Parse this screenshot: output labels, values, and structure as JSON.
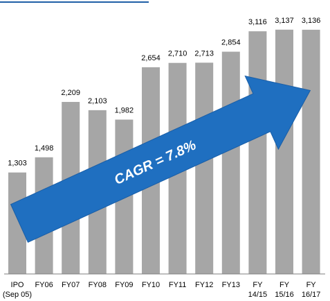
{
  "chart_data": {
    "type": "bar",
    "categories": [
      "IPO\n(Sep 05)",
      "FY06",
      "FY07",
      "FY08",
      "FY09",
      "FY10",
      "FY11",
      "FY12",
      "FY13",
      "FY\n14/15",
      "FY\n15/16",
      "FY\n16/17"
    ],
    "values": [
      1303,
      1498,
      2209,
      2103,
      1982,
      2654,
      2710,
      2713,
      2854,
      3116,
      3137,
      3136
    ],
    "value_labels": [
      "1,303",
      "1,498",
      "2,209",
      "2,103",
      "1,982",
      "2,654",
      "2,710",
      "2,713",
      "2,854",
      "3,116",
      "3,137",
      "3,136"
    ],
    "color": "#a6a6a6",
    "annotation": "CAGR = 7.8%",
    "ylim": [
      0,
      3500
    ]
  }
}
